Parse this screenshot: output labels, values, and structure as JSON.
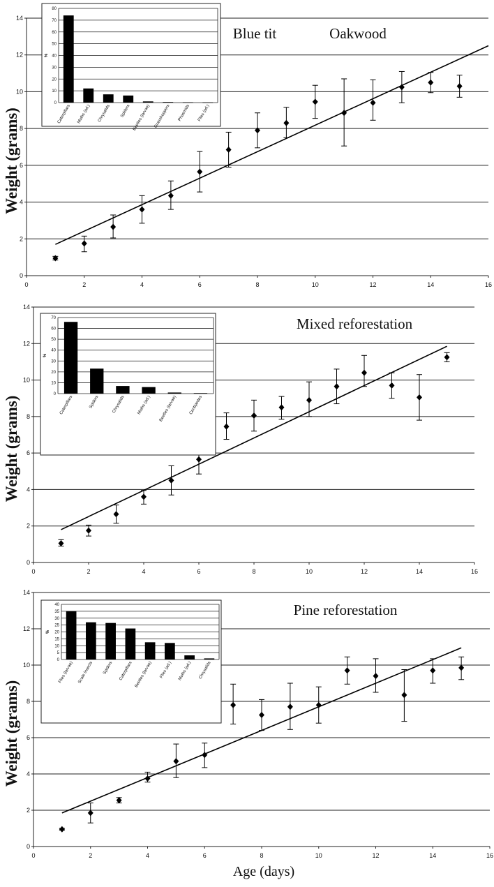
{
  "chart_data": [
    {
      "type": "scatter",
      "title": "Blue tit",
      "subtitle": "Oakwood",
      "xlabel": "",
      "ylabel": "Weight (grams)",
      "xlim": [
        0,
        16
      ],
      "ylim": [
        0,
        14
      ],
      "xticks": [
        "0",
        "2",
        "4",
        "6",
        "8",
        "10",
        "12",
        "14",
        "16"
      ],
      "yticks": [
        "0",
        "2",
        "4",
        "6",
        "8",
        "10",
        "12",
        "14"
      ],
      "grid": "horizontal",
      "points": [
        {
          "x": 1,
          "y": 0.95,
          "lo": 0.85,
          "hi": 1.05
        },
        {
          "x": 2,
          "y": 1.75,
          "lo": 1.3,
          "hi": 2.15
        },
        {
          "x": 3,
          "y": 2.65,
          "lo": 2.05,
          "hi": 3.3
        },
        {
          "x": 4,
          "y": 3.6,
          "lo": 2.85,
          "hi": 4.35
        },
        {
          "x": 5,
          "y": 4.35,
          "lo": 3.6,
          "hi": 5.15
        },
        {
          "x": 6,
          "y": 5.65,
          "lo": 4.55,
          "hi": 6.75
        },
        {
          "x": 7,
          "y": 6.85,
          "lo": 5.9,
          "hi": 7.8
        },
        {
          "x": 8,
          "y": 7.9,
          "lo": 6.95,
          "hi": 8.85
        },
        {
          "x": 9,
          "y": 8.3,
          "lo": 7.5,
          "hi": 9.15
        },
        {
          "x": 10,
          "y": 9.45,
          "lo": 8.55,
          "hi": 10.35
        },
        {
          "x": 11,
          "y": 8.85,
          "lo": 7.05,
          "hi": 10.7
        },
        {
          "x": 12,
          "y": 9.4,
          "lo": 8.45,
          "hi": 10.65
        },
        {
          "x": 13,
          "y": 10.25,
          "lo": 9.4,
          "hi": 11.1
        },
        {
          "x": 14,
          "y": 10.5,
          "lo": 9.95,
          "hi": 11.05
        },
        {
          "x": 15,
          "y": 10.3,
          "lo": 9.7,
          "hi": 10.9
        }
      ],
      "trendline": {
        "x1": 1,
        "y1": 1.7,
        "x2": 16,
        "y2": 12.5
      },
      "inset": {
        "type": "bar",
        "ylabel": "%",
        "ylim": [
          0,
          80
        ],
        "yticks": [
          "0",
          "10",
          "20",
          "30",
          "40",
          "50",
          "60",
          "70",
          "80"
        ],
        "categories": [
          "Caterpillars",
          "Moths (ad.)",
          "Chrysalids",
          "Spiders",
          "Beetles (larvae)",
          "Grasshoppers",
          "Phasmids",
          "Flies (ad.)"
        ],
        "values": [
          74,
          12,
          7,
          6,
          1,
          0.5,
          0.3,
          0.2
        ]
      }
    },
    {
      "type": "scatter",
      "title": "Mixed reforestation",
      "xlabel": "",
      "ylabel": "Weight (grams)",
      "xlim": [
        0,
        16
      ],
      "ylim": [
        0,
        14
      ],
      "xticks": [
        "0",
        "2",
        "4",
        "6",
        "8",
        "10",
        "12",
        "14",
        "16"
      ],
      "yticks": [
        "0",
        "2",
        "4",
        "6",
        "8",
        "10",
        "12",
        "14"
      ],
      "grid": "horizontal",
      "points": [
        {
          "x": 1,
          "y": 1.05,
          "lo": 0.9,
          "hi": 1.25
        },
        {
          "x": 2,
          "y": 1.75,
          "lo": 1.45,
          "hi": 2.05
        },
        {
          "x": 3,
          "y": 2.65,
          "lo": 2.15,
          "hi": 3.15
        },
        {
          "x": 4,
          "y": 3.6,
          "lo": 3.2,
          "hi": 3.95
        },
        {
          "x": 5,
          "y": 4.5,
          "lo": 3.7,
          "hi": 5.3
        },
        {
          "x": 6,
          "y": 5.65,
          "lo": 4.85,
          "hi": 6.45
        },
        {
          "x": 7,
          "y": 7.45,
          "lo": 6.75,
          "hi": 8.2
        },
        {
          "x": 8,
          "y": 8.05,
          "lo": 7.2,
          "hi": 8.9
        },
        {
          "x": 9,
          "y": 8.5,
          "lo": 7.85,
          "hi": 9.1
        },
        {
          "x": 10,
          "y": 8.9,
          "lo": 8.0,
          "hi": 9.9
        },
        {
          "x": 11,
          "y": 9.65,
          "lo": 8.7,
          "hi": 10.6
        },
        {
          "x": 12,
          "y": 10.4,
          "lo": 9.65,
          "hi": 11.35
        },
        {
          "x": 13,
          "y": 9.7,
          "lo": 9.0,
          "hi": 10.4
        },
        {
          "x": 14,
          "y": 9.05,
          "lo": 7.8,
          "hi": 10.3
        },
        {
          "x": 15,
          "y": 11.25,
          "lo": 11.0,
          "hi": 11.5
        }
      ],
      "trendline": {
        "x1": 1,
        "y1": 1.8,
        "x2": 15,
        "y2": 11.85
      },
      "inset": {
        "type": "bar",
        "ylabel": "%",
        "ylim": [
          0,
          70
        ],
        "yticks": [
          "0",
          "10",
          "20",
          "30",
          "40",
          "50",
          "60",
          "70"
        ],
        "categories": [
          "Caterpillars",
          "Spiders",
          "Chrysalids",
          "Moths (ad.)",
          "Beetles (larvae)",
          "Centipedes"
        ],
        "values": [
          66,
          23,
          7,
          6,
          1,
          0.5
        ]
      }
    },
    {
      "type": "scatter",
      "title": "Pine reforestation",
      "xlabel": "Age (days)",
      "ylabel": "Weight (grams)",
      "xlim": [
        0,
        16
      ],
      "ylim": [
        0,
        14
      ],
      "xticks": [
        "0",
        "2",
        "4",
        "6",
        "8",
        "10",
        "12",
        "14",
        "16"
      ],
      "yticks": [
        "0",
        "2",
        "4",
        "6",
        "8",
        "10",
        "12",
        "14"
      ],
      "grid": "horizontal",
      "points": [
        {
          "x": 1,
          "y": 0.95,
          "lo": 0.9,
          "hi": 1.0
        },
        {
          "x": 2,
          "y": 1.85,
          "lo": 1.3,
          "hi": 2.4
        },
        {
          "x": 3,
          "y": 2.55,
          "lo": 2.4,
          "hi": 2.7
        },
        {
          "x": 4,
          "y": 3.75,
          "lo": 3.55,
          "hi": 4.1
        },
        {
          "x": 5,
          "y": 4.7,
          "lo": 3.8,
          "hi": 5.65
        },
        {
          "x": 6,
          "y": 5.05,
          "lo": 4.35,
          "hi": 5.7
        },
        {
          "x": 7,
          "y": 7.8,
          "lo": 6.75,
          "hi": 8.95
        },
        {
          "x": 8,
          "y": 7.25,
          "lo": 6.4,
          "hi": 8.1
        },
        {
          "x": 9,
          "y": 7.7,
          "lo": 6.45,
          "hi": 9.0
        },
        {
          "x": 10,
          "y": 7.8,
          "lo": 6.8,
          "hi": 8.8
        },
        {
          "x": 11,
          "y": 9.7,
          "lo": 8.95,
          "hi": 10.45
        },
        {
          "x": 12,
          "y": 9.4,
          "lo": 8.5,
          "hi": 10.35
        },
        {
          "x": 13,
          "y": 8.35,
          "lo": 6.9,
          "hi": 9.75
        },
        {
          "x": 14,
          "y": 9.7,
          "lo": 9.0,
          "hi": 10.35
        },
        {
          "x": 15,
          "y": 9.85,
          "lo": 9.2,
          "hi": 10.45
        }
      ],
      "trendline": {
        "x1": 1,
        "y1": 1.85,
        "x2": 15,
        "y2": 10.95
      },
      "inset": {
        "type": "bar",
        "ylabel": "%",
        "ylim": [
          0,
          40
        ],
        "yticks": [
          "0",
          "5",
          "10",
          "15",
          "20",
          "25",
          "30",
          "35",
          "40"
        ],
        "categories": [
          "Flies (larvae)",
          "Scale insects",
          "Spiders",
          "Caterpillars",
          "Beetles (larvae)",
          "Flies (ad.)",
          "Moths (ad.)",
          "Chrysalids"
        ],
        "values": [
          35,
          27,
          26.5,
          22.5,
          12.5,
          12,
          3,
          0.8
        ]
      }
    }
  ]
}
